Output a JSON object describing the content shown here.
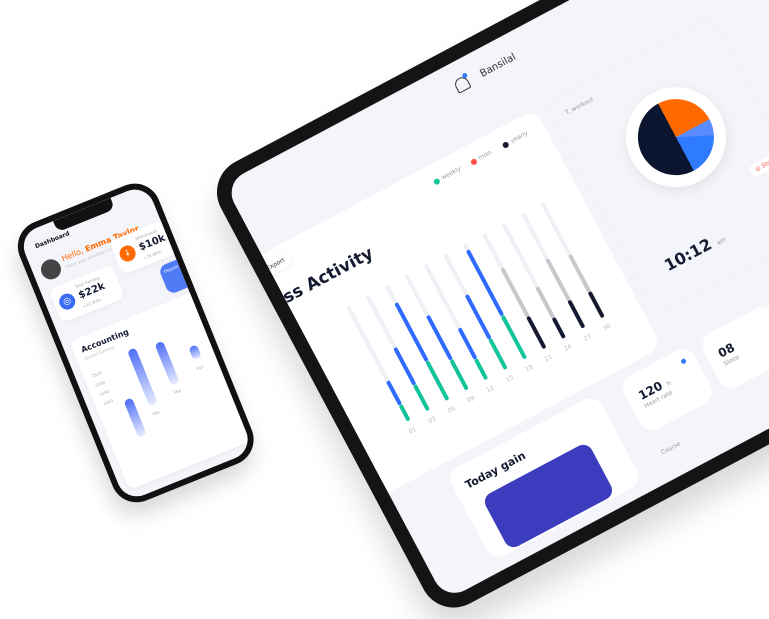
{
  "tablet": {
    "header": {
      "user": "Bansilal"
    },
    "chart": {
      "title": "Fitness Activity",
      "export": "Export",
      "legend": [
        {
          "label": "weekly",
          "color": "#13c39a"
        },
        {
          "label": "mon.",
          "color": "#ff4b4b"
        },
        {
          "label": "yearly",
          "color": "#151a30"
        }
      ]
    },
    "clock": {
      "label": "T. workout",
      "time": "10:12",
      "ampm": "am",
      "stop": "Stop"
    },
    "today_gain": {
      "title": "Today gain"
    },
    "heart": {
      "value": "120",
      "unit": "h",
      "label": "Heart rate"
    },
    "sleep": {
      "value": "08",
      "label": "Sleep"
    },
    "course": {
      "label": "Course"
    }
  },
  "chart_data": {
    "type": "bar",
    "categories": [
      "01",
      "03",
      "06",
      "09",
      "12",
      "15",
      "18",
      "21",
      "24",
      "27",
      "30"
    ],
    "series": [
      {
        "values": [
          0.35,
          0.55,
          0.85,
          0.65,
          0.45,
          0.65,
          0.95,
          0.7,
          0.45,
          0.6,
          0.55
        ]
      }
    ],
    "colors": {
      "top_active": "#2f6bff",
      "bottom_active": "#13c39a",
      "top_inactive": "#c8c8cc",
      "bottom_inactive": "#151a30"
    }
  },
  "phone": {
    "header": "Dashboard",
    "greeting": "Hello,",
    "name": "Emma Taylor",
    "subtitle": "Check your activities in this dashboard.",
    "total_earning": {
      "label": "Total Earning",
      "value": "$22k",
      "change": "+10.80%"
    },
    "withdrawal": {
      "label": "Withdrawal",
      "value": "$10k",
      "change": "+26.80%"
    },
    "deposit": {
      "label": "Deposit"
    },
    "accounting": {
      "title": "Accounting",
      "subtitle": "Overall Earning",
      "yticks": [
        "2500",
        "2000",
        "1500",
        "1000"
      ],
      "months": [
        "Feb",
        "Mar",
        "Apr"
      ]
    }
  }
}
